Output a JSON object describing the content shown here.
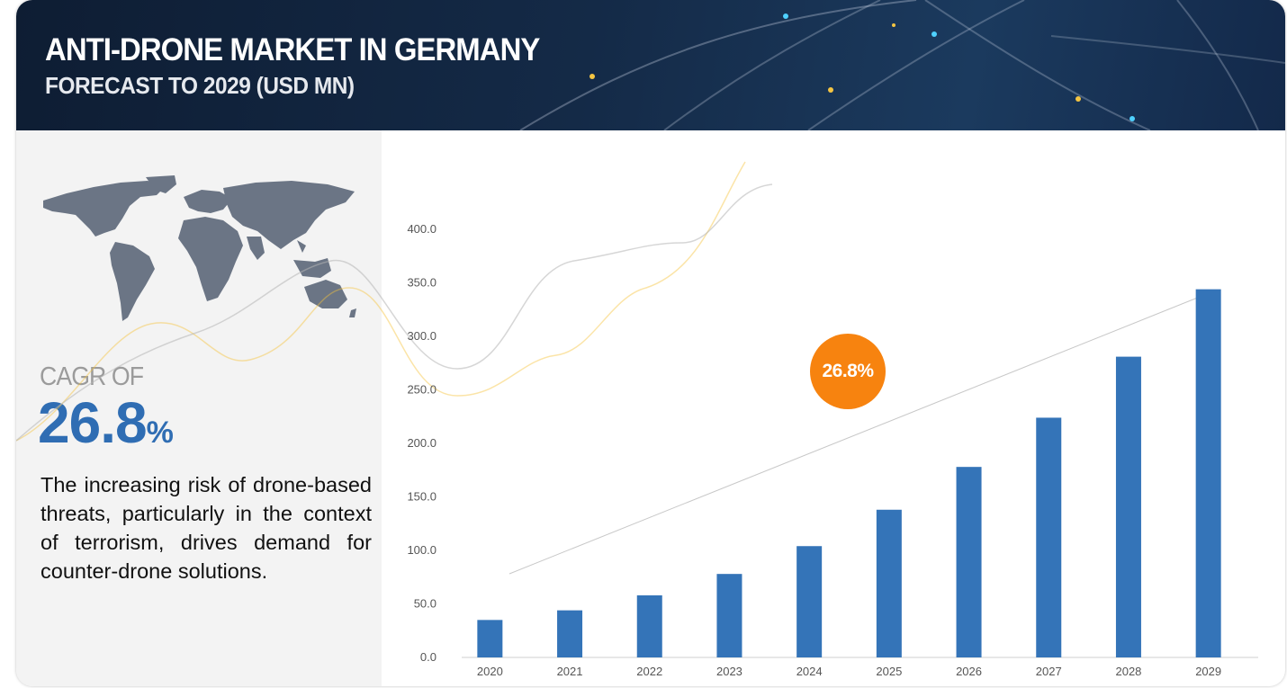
{
  "header": {
    "title": "ANTI-DRONE MARKET IN GERMANY",
    "subtitle": "FORECAST TO 2029 (USD MN)"
  },
  "summary": {
    "cagr_label": "CAGR OF",
    "cagr_value": "26.8",
    "cagr_unit": "%",
    "description": "The increasing risk of drone-based threats, particularly in the context of terrorism, drives demand for counter-drone solutions."
  },
  "badge": {
    "text": "26.8%"
  },
  "icons": {
    "map": "world-map-icon",
    "arrow": "trend-arrow-icon"
  },
  "colors": {
    "bar": "#3474b8",
    "accent": "#f7830f",
    "cagr": "#2f6db3",
    "banner": "#142a47"
  },
  "chart_data": {
    "type": "bar",
    "categories": [
      "2020",
      "2021",
      "2022",
      "2023",
      "2024",
      "2025",
      "2026",
      "2027",
      "2028",
      "2029"
    ],
    "values": [
      35,
      44,
      58,
      78,
      104,
      138,
      178,
      224,
      281,
      344
    ],
    "ylim": [
      0,
      400
    ],
    "yticks": [
      "0.0",
      "50.0",
      "100.0",
      "150.0",
      "200.0",
      "250.0",
      "300.0",
      "350.0",
      "400.0"
    ],
    "grid": false,
    "legend": "none"
  }
}
